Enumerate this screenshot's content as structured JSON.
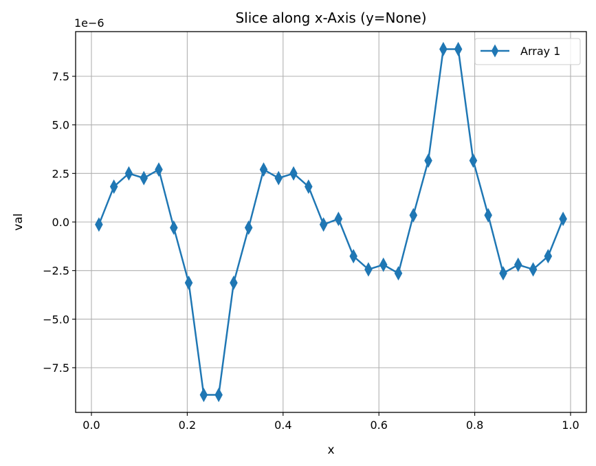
{
  "chart_data": {
    "type": "line",
    "title": "Slice along x-Axis (y=None)",
    "xlabel": "x",
    "ylabel": "val",
    "y_scale_note": "1e−6",
    "xlim": [
      -0.033,
      1.033
    ],
    "ylim": [
      -9.8,
      9.8
    ],
    "grid": true,
    "legend_position": "top-right",
    "marker": "thin_diamond",
    "xticks": [
      0.0,
      0.2,
      0.4,
      0.6,
      0.8,
      1.0
    ],
    "xtick_labels": [
      "0.0",
      "0.2",
      "0.4",
      "0.6",
      "0.8",
      "1.0"
    ],
    "yticks": [
      -7.5,
      -5.0,
      -2.5,
      0.0,
      2.5,
      5.0,
      7.5
    ],
    "ytick_labels": [
      "−7.5",
      "−5.0",
      "−2.5",
      "0.0",
      "2.5",
      "5.0",
      "7.5"
    ],
    "series": [
      {
        "name": "Array 1",
        "color": "#1f77b4",
        "x": [
          0.0156,
          0.0469,
          0.0781,
          0.1094,
          0.1406,
          0.1719,
          0.2031,
          0.2344,
          0.2656,
          0.2969,
          0.3281,
          0.3594,
          0.3906,
          0.4219,
          0.4531,
          0.4844,
          0.5156,
          0.5469,
          0.5781,
          0.6094,
          0.6406,
          0.6719,
          0.7031,
          0.7344,
          0.7656,
          0.7969,
          0.8281,
          0.8594,
          0.8906,
          0.9219,
          0.9531,
          0.9844
        ],
        "y": [
          -0.13,
          1.82,
          2.5,
          2.26,
          2.7,
          -0.29,
          -3.13,
          -8.9,
          -8.9,
          -3.13,
          -0.29,
          2.7,
          2.26,
          2.5,
          1.82,
          -0.13,
          0.16,
          -1.76,
          -2.44,
          -2.2,
          -2.64,
          0.35,
          3.16,
          8.9,
          8.9,
          3.16,
          0.35,
          -2.64,
          -2.2,
          -2.44,
          -1.76,
          0.16
        ]
      }
    ]
  }
}
